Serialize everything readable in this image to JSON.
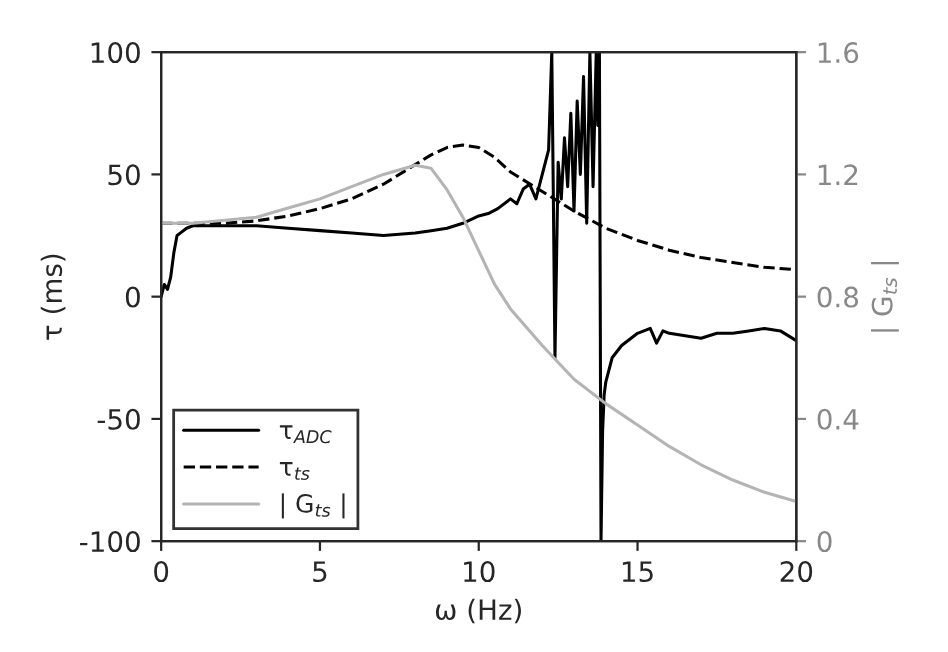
{
  "chart_data": {
    "type": "line",
    "xlabel": "ω (Hz)",
    "ylabel": "τ (ms)",
    "y2label": "| G$_{ts}$ |",
    "xlim": [
      0,
      20
    ],
    "xticks": [
      0,
      5,
      10,
      15,
      20
    ],
    "ylim": [
      -100,
      100
    ],
    "yticks": [
      -100,
      -50,
      0,
      50,
      100
    ],
    "y2lim": [
      0,
      1.6
    ],
    "y2ticks": [
      0,
      0.4,
      0.8,
      1.2,
      1.6
    ],
    "legend": "bottom left",
    "grid": false,
    "series": [
      {
        "name": "τ$_{ADC}$",
        "color": "#000000",
        "line_style": "solid",
        "x": [
          0,
          0.1,
          0.2,
          0.3,
          0.4,
          0.5,
          0.6,
          0.8,
          1,
          1.5,
          2,
          3,
          4,
          5,
          6,
          7,
          8,
          8.5,
          9,
          9.5,
          10,
          10.3,
          10.6,
          11,
          11.2,
          11.4,
          11.6,
          11.8,
          12,
          12.1,
          12.2,
          12.3,
          12.35,
          12.4,
          12.5,
          12.6,
          12.7,
          12.8,
          12.9,
          13,
          13.1,
          13.2,
          13.3,
          13.4,
          13.5,
          13.6,
          13.7,
          13.75,
          13.8,
          13.85,
          13.9,
          13.95,
          14,
          14.2,
          14.5,
          15,
          15.4,
          15.6,
          15.8,
          16,
          16.5,
          17,
          17.5,
          18,
          18.5,
          19,
          19.5,
          20
        ],
        "values": [
          0,
          5,
          3,
          8,
          18,
          25,
          26,
          28,
          29,
          29,
          29,
          29,
          28,
          27,
          26,
          25,
          26,
          27,
          28,
          30,
          33,
          34,
          36,
          40,
          38,
          44,
          46,
          40,
          50,
          55,
          60,
          100,
          40,
          -25,
          55,
          40,
          65,
          45,
          75,
          35,
          80,
          50,
          90,
          30,
          100,
          45,
          100,
          70,
          100,
          -100,
          -55,
          -40,
          -35,
          -25,
          -20,
          -15,
          -13,
          -19,
          -14,
          -15,
          -16,
          -17,
          -15,
          -15,
          -14,
          -13,
          -14,
          -18
        ]
      },
      {
        "name": "τ$_{ts}$",
        "color": "#000000",
        "line_style": "dashed",
        "x": [
          0,
          1,
          2,
          3,
          4,
          5,
          6,
          7,
          8,
          8.5,
          9,
          9.5,
          10,
          10.5,
          11,
          12,
          13,
          14,
          15,
          16,
          17,
          18,
          19,
          20
        ],
        "values": [
          30,
          30,
          30,
          31,
          33,
          36,
          40,
          46,
          54,
          58,
          61,
          62,
          61,
          57,
          51,
          43,
          35,
          28,
          23,
          19,
          16,
          14,
          12,
          11
        ]
      },
      {
        "name": "| G$_{ts}$ |",
        "color": "#b4b4b4",
        "line_style": "solid",
        "axis": "y2",
        "x": [
          0,
          1,
          2,
          3,
          4,
          5,
          6,
          7,
          8,
          8.5,
          9,
          9.5,
          10,
          10.5,
          11,
          12,
          13,
          14,
          15,
          16,
          17,
          18,
          19,
          20
        ],
        "values": [
          1.04,
          1.04,
          1.05,
          1.06,
          1.09,
          1.12,
          1.16,
          1.2,
          1.23,
          1.22,
          1.15,
          1.06,
          0.95,
          0.84,
          0.76,
          0.64,
          0.53,
          0.45,
          0.38,
          0.31,
          0.25,
          0.2,
          0.16,
          0.13
        ]
      }
    ]
  }
}
